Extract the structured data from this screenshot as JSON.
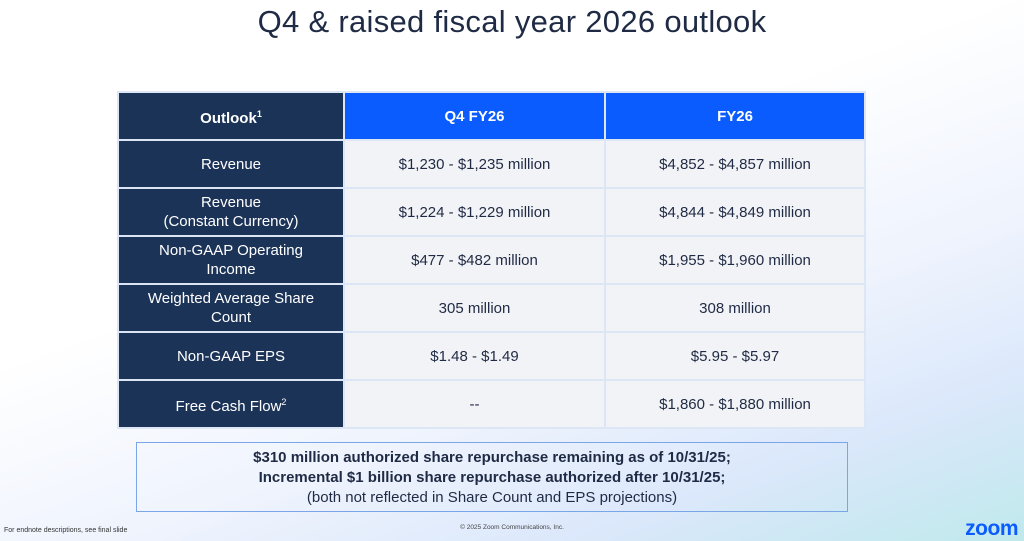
{
  "title": "Q4 & raised fiscal year 2026 outlook",
  "table": {
    "headers": {
      "outlook": "Outlook",
      "outlook_sup": "1",
      "q4": "Q4 FY26",
      "fy": "FY26"
    },
    "rows": [
      {
        "label": "Revenue",
        "label2": "",
        "sup": "",
        "q4": "$1,230 - $1,235 million",
        "fy": "$4,852 - $4,857 million"
      },
      {
        "label": "Revenue",
        "label2": "(Constant Currency)",
        "sup": "",
        "q4": "$1,224 - $1,229 million",
        "fy": "$4,844 - $4,849 million"
      },
      {
        "label": "Non-GAAP Operating",
        "label2": "Income",
        "sup": "",
        "q4": "$477 - $482 million",
        "fy": "$1,955 - $1,960 million"
      },
      {
        "label": "Weighted Average Share",
        "label2": "Count",
        "sup": "",
        "q4": "305 million",
        "fy": "308 million"
      },
      {
        "label": "Non-GAAP EPS",
        "label2": "",
        "sup": "",
        "q4": "$1.48 - $1.49",
        "fy": "$5.95 - $5.97"
      },
      {
        "label": "Free Cash Flow",
        "label2": "",
        "sup": "2",
        "q4": "--",
        "fy": "$1,860 - $1,880 million"
      }
    ]
  },
  "note": {
    "line1": "$310 million authorized share repurchase remaining as of 10/31/25;",
    "line2": "Incremental $1 billion share repurchase authorized after 10/31/25;",
    "line3": "(both not reflected in Share Count and EPS projections)"
  },
  "footer": {
    "left": "For endnote descriptions, see final slide",
    "center": "© 2025 Zoom Communications, Inc.",
    "logo": "zoom"
  },
  "colors": {
    "navy": "#1c3358",
    "blue": "#0b5cff"
  }
}
